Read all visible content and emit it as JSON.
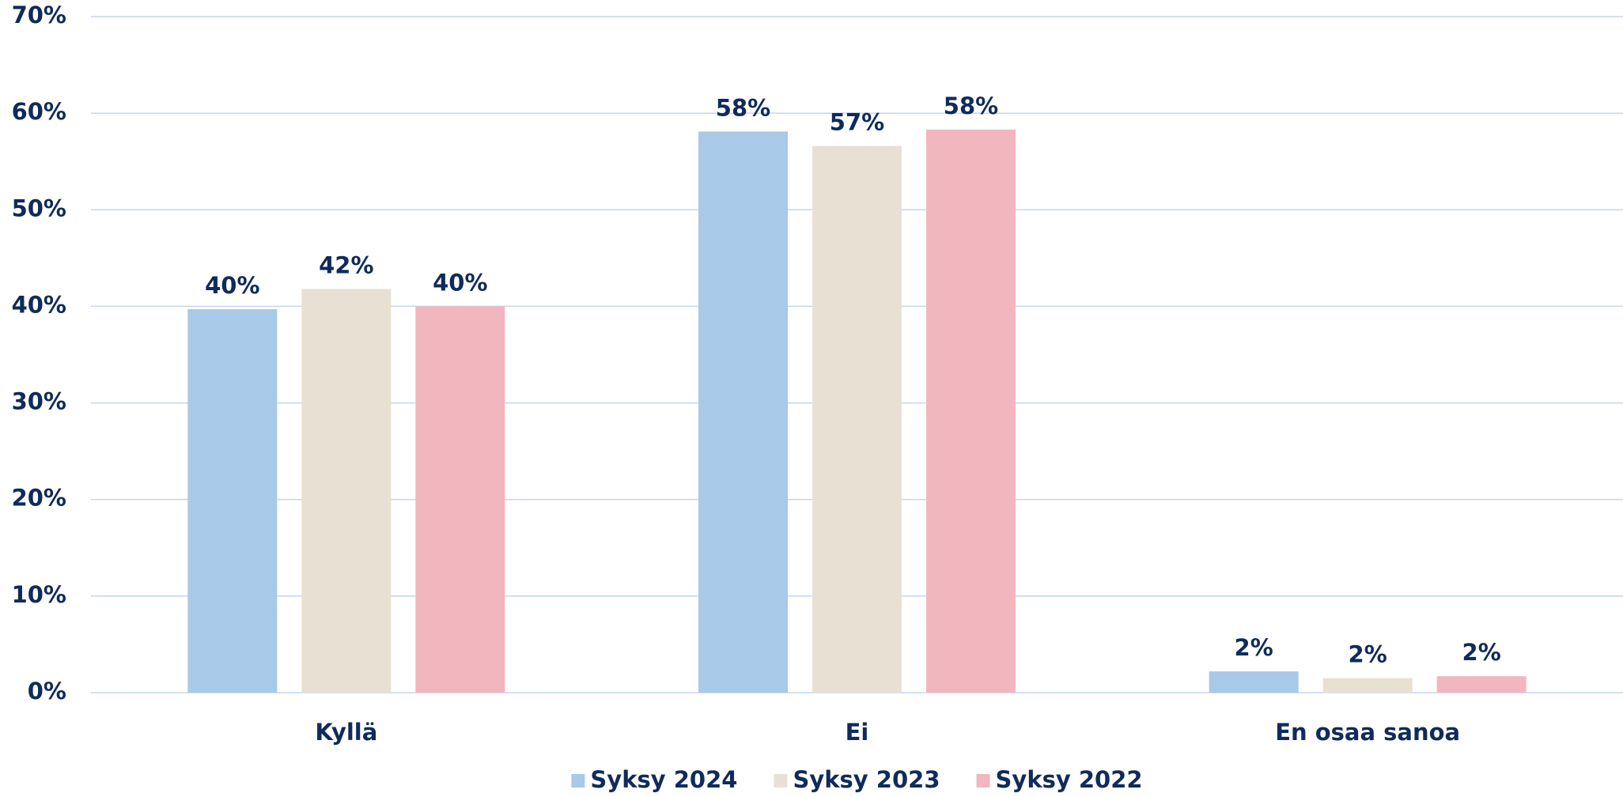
{
  "chart_data": {
    "type": "bar",
    "categories": [
      "Kyllä",
      "Ei",
      "En osaa sanoa"
    ],
    "series": [
      {
        "name": "Syksy 2024",
        "color": "#a8c9e8",
        "values": [
          39.7,
          58.1,
          2.2
        ],
        "value_labels": [
          "40%",
          "58%",
          "2%"
        ]
      },
      {
        "name": "Syksy 2023",
        "color": "#e8e1d3",
        "values": [
          41.8,
          56.6,
          1.5
        ],
        "value_labels": [
          "42%",
          "57%",
          "2%"
        ]
      },
      {
        "name": "Syksy 2022",
        "color": "#f2b6be",
        "values": [
          40.0,
          58.3,
          1.7
        ],
        "value_labels": [
          "40%",
          "58%",
          "2%"
        ]
      }
    ],
    "ylim": [
      0,
      70
    ],
    "yticks": [
      {
        "value": 0,
        "label": "0%"
      },
      {
        "value": 10,
        "label": "10%"
      },
      {
        "value": 20,
        "label": "20%"
      },
      {
        "value": 30,
        "label": "30%"
      },
      {
        "value": 40,
        "label": "40%"
      },
      {
        "value": 50,
        "label": "50%"
      },
      {
        "value": 60,
        "label": "60%"
      },
      {
        "value": 70,
        "label": "70%"
      }
    ],
    "grid": true,
    "legend": "bottom"
  }
}
